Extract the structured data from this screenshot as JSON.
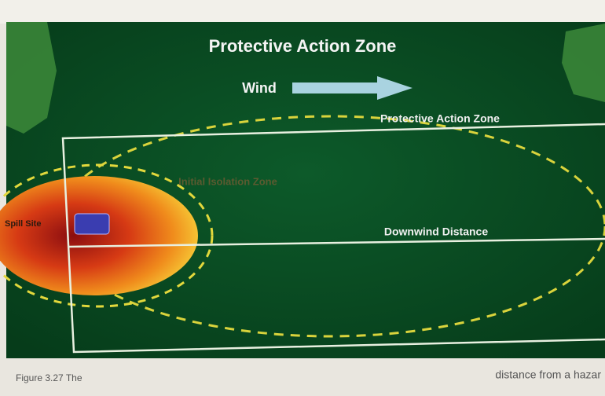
{
  "title": "Protective Action Zone",
  "wind": "Wind",
  "labels": {
    "protective_action_zone": "Protective Action Zone",
    "isolation_zone": "Initial Isolation Zone",
    "site": "Spill Site",
    "downwind_distance": "Downwind Distance"
  },
  "caption": {
    "left": "Figure 3.27 The",
    "right": "distance from a hazar"
  }
}
